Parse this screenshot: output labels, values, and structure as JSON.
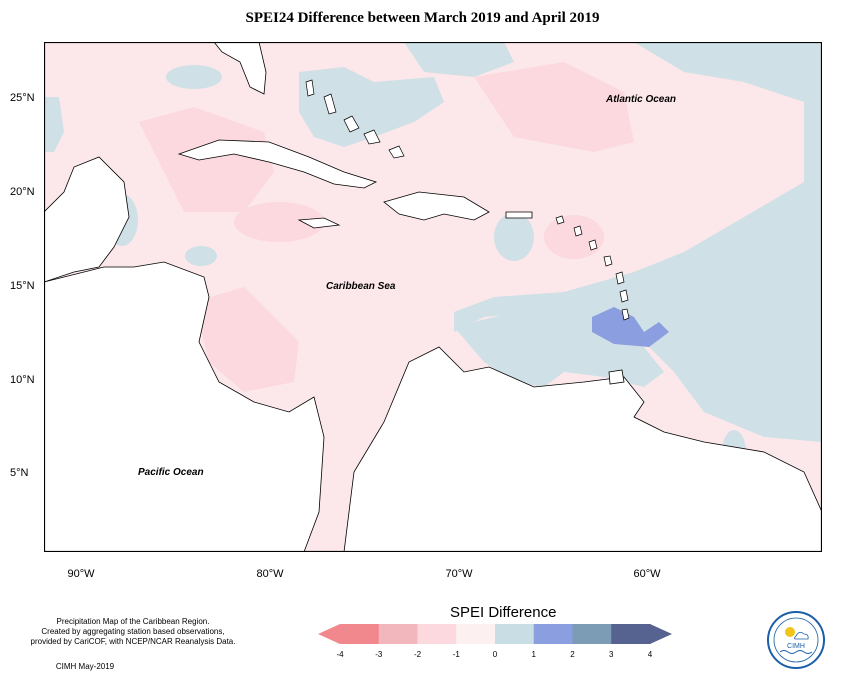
{
  "title": "SPEI24 Difference between March 2019 and April 2019",
  "x_axis_labels": [
    "90°W",
    "80°W",
    "70°W",
    "60°W"
  ],
  "y_axis_labels": [
    "25°N",
    "20°N",
    "15°N",
    "10°N",
    "5°N"
  ],
  "ocean_labels": {
    "atlantic": "Atlantic Ocean",
    "caribbean": "Caribbean Sea",
    "pacific": "Pacific Ocean"
  },
  "notes": {
    "line1": "Precipitation Map of the Caribbean Region.",
    "line2": "Created by aggregating station based observations,",
    "line3": "provided by CariCOF, with NCEP/NCAR Reanalysis Data.",
    "credit": "CIMH May-2019"
  },
  "legend": {
    "title": "SPEI Difference",
    "ticks": [
      "-4",
      "-3",
      "-2",
      "-1",
      "0",
      "1",
      "2",
      "3",
      "4"
    ],
    "colors": [
      "#f0888e",
      "#f2b7bd",
      "#fcd9de",
      "#fdf0f1",
      "#c9dde5",
      "#8b9ee0",
      "#7b9cb4",
      "#56628f"
    ]
  },
  "logo": {
    "text": "CIMH"
  },
  "colors": {
    "pink": "#fce8ea",
    "pink_dark": "#fbd9de",
    "blue": "#cfe0e6",
    "purple": "#8b9ee0"
  }
}
